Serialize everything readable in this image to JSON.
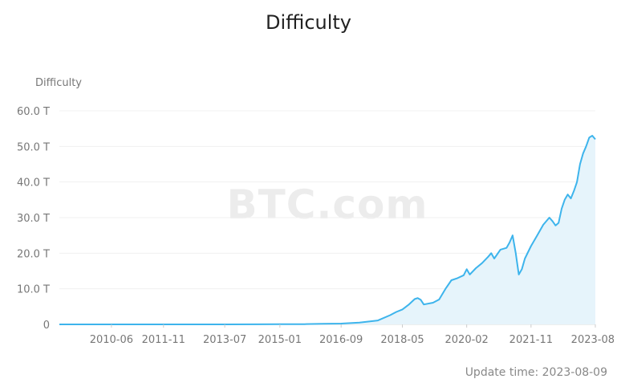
{
  "chart_data": {
    "type": "area",
    "title": "Difficulty",
    "ylabel": "Difficulty",
    "xlabel": "",
    "watermark": "BTC.com",
    "x_tick_labels": [
      "2010-06",
      "2011-11",
      "2013-07",
      "2015-01",
      "2016-09",
      "2018-05",
      "2020-02",
      "2021-11",
      "2023-08"
    ],
    "y_tick_labels": [
      "0",
      "10.0 T",
      "20.0 T",
      "30.0 T",
      "40.0 T",
      "50.0 T",
      "60.0 T"
    ],
    "ylim": [
      0,
      60
    ],
    "y_unit": "T",
    "xlim": [
      "2009-01",
      "2023-08"
    ],
    "grid": "horizontal",
    "line_color": "#3db4ec",
    "fill_color": "#e6f4fb",
    "series": [
      {
        "x": [
          "2009-01",
          "2010-06",
          "2011-11",
          "2013-07",
          "2014-06",
          "2015-01",
          "2015-09",
          "2016-03",
          "2016-09",
          "2017-03",
          "2017-09",
          "2018-01",
          "2018-03",
          "2018-05",
          "2018-07",
          "2018-09",
          "2018-10",
          "2018-11",
          "2018-12",
          "2019-03",
          "2019-05",
          "2019-07",
          "2019-09",
          "2019-11",
          "2020-01",
          "2020-02",
          "2020-03",
          "2020-05",
          "2020-07",
          "2020-09",
          "2020-10",
          "2020-11",
          "2021-01",
          "2021-03",
          "2021-04",
          "2021-05",
          "2021-06",
          "2021-07",
          "2021-08",
          "2021-09",
          "2021-11",
          "2022-01",
          "2022-03",
          "2022-05",
          "2022-06",
          "2022-07",
          "2022-08",
          "2022-09",
          "2022-10",
          "2022-11",
          "2022-12",
          "2023-01",
          "2023-02",
          "2023-03",
          "2023-04",
          "2023-05",
          "2023-06",
          "2023-07",
          "2023-08"
        ],
        "values": [
          0,
          0,
          0,
          0,
          0.02,
          0.05,
          0.07,
          0.16,
          0.22,
          0.5,
          1.1,
          2.6,
          3.5,
          4.2,
          5.5,
          7.1,
          7.4,
          6.9,
          5.6,
          6.1,
          7.0,
          9.9,
          12.4,
          13.0,
          13.8,
          15.5,
          14.0,
          15.8,
          17.2,
          19.0,
          20.0,
          18.5,
          21.0,
          21.5,
          23.0,
          25.0,
          20.0,
          14.0,
          15.5,
          18.5,
          22.0,
          25.0,
          28.0,
          30.0,
          29.0,
          27.8,
          28.5,
          32.5,
          35.0,
          36.5,
          35.4,
          37.5,
          40.0,
          45.0,
          48.0,
          50.0,
          52.5,
          53.0,
          52.0
        ]
      }
    ]
  },
  "footer": {
    "update_time": "Update time: 2023-08-09"
  }
}
